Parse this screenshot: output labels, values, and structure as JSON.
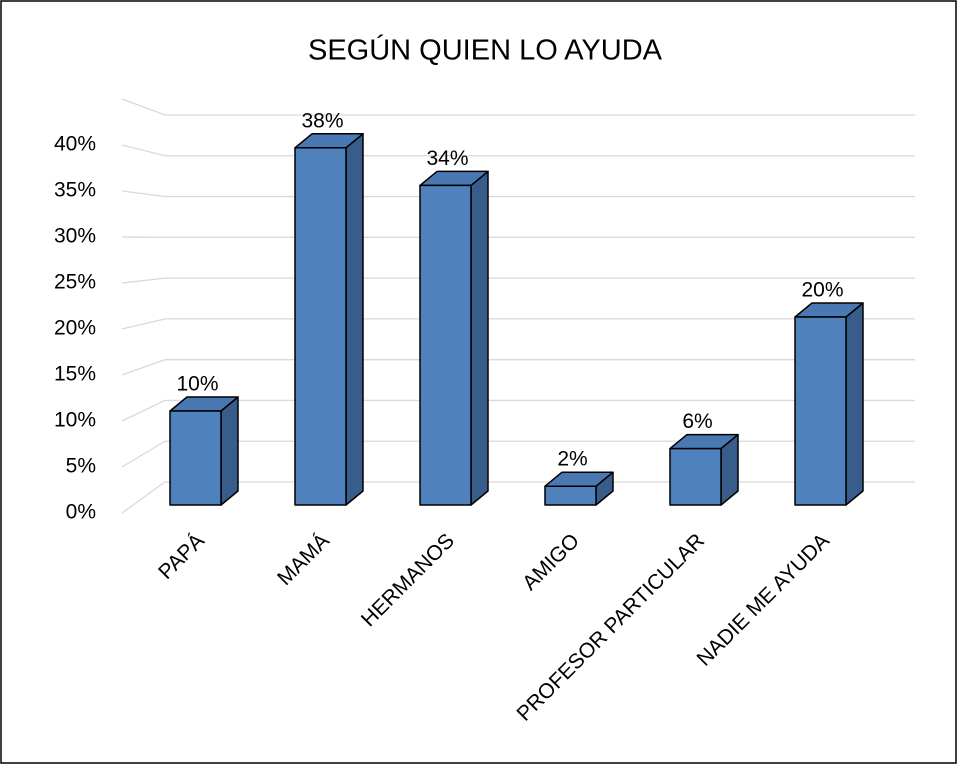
{
  "chart_data": {
    "type": "bar3d",
    "title": "SEGÚN QUIEN LO AYUDA",
    "categories": [
      "PAPÁ",
      "MAMÁ",
      "HERMANOS",
      "AMIGO",
      "PROFESOR PARTICULAR",
      "NADIE ME AYUDA"
    ],
    "values": [
      10,
      38,
      34,
      2,
      6,
      20
    ],
    "value_labels": [
      "10%",
      "38%",
      "34%",
      "2%",
      "6%",
      "20%"
    ],
    "color": "#4f81bd",
    "ylim": [
      0,
      45
    ],
    "yticks": [
      {
        "value": 0,
        "label": "0%"
      },
      {
        "value": 5,
        "label": "5%"
      },
      {
        "value": 10,
        "label": "10%"
      },
      {
        "value": 15,
        "label": "15%"
      },
      {
        "value": 20,
        "label": "20%"
      },
      {
        "value": 25,
        "label": "25%"
      },
      {
        "value": 30,
        "label": "30%"
      },
      {
        "value": 35,
        "label": "35%"
      },
      {
        "value": 40,
        "label": "40%"
      }
    ],
    "grid": true
  }
}
